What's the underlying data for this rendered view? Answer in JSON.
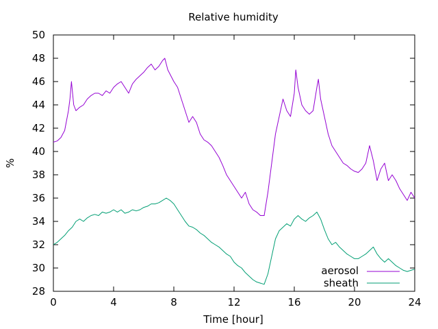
{
  "chart_data": {
    "type": "line",
    "title": "Relative humidity",
    "xlabel": "Time [hour]",
    "ylabel": "%",
    "xlim": [
      0,
      24
    ],
    "ylim": [
      28,
      50
    ],
    "xticks": [
      0,
      4,
      8,
      12,
      16,
      20,
      24
    ],
    "xtick_labels": [
      "0",
      "4",
      "8",
      "12",
      "16",
      "20",
      "24"
    ],
    "yticks": [
      28,
      30,
      32,
      34,
      36,
      38,
      40,
      42,
      44,
      46,
      48,
      50
    ],
    "ytick_labels": [
      "28",
      "30",
      "32",
      "34",
      "36",
      "38",
      "40",
      "42",
      "44",
      "46",
      "48",
      "50"
    ],
    "grid": false,
    "legend_position": "bottom-right",
    "series": [
      {
        "name": "aerosol",
        "color": "#9400d3",
        "x": [
          0,
          0.25,
          0.5,
          0.75,
          1.0,
          1.1,
          1.2,
          1.35,
          1.5,
          1.75,
          2.0,
          2.25,
          2.5,
          2.75,
          3.0,
          3.25,
          3.5,
          3.75,
          4.0,
          4.25,
          4.5,
          4.75,
          5.0,
          5.25,
          5.5,
          5.75,
          6.0,
          6.25,
          6.5,
          6.75,
          7.0,
          7.25,
          7.4,
          7.6,
          7.8,
          8.0,
          8.25,
          8.5,
          8.75,
          9.0,
          9.25,
          9.5,
          9.75,
          10.0,
          10.25,
          10.5,
          10.75,
          11.0,
          11.25,
          11.5,
          11.75,
          12.0,
          12.25,
          12.5,
          12.75,
          13.0,
          13.25,
          13.5,
          13.75,
          14.0,
          14.25,
          14.5,
          14.75,
          15.0,
          15.25,
          15.5,
          15.75,
          16.0,
          16.1,
          16.25,
          16.5,
          16.75,
          17.0,
          17.25,
          17.5,
          17.6,
          17.75,
          18.0,
          18.25,
          18.5,
          18.75,
          19.0,
          19.25,
          19.5,
          19.75,
          20.0,
          20.25,
          20.5,
          20.75,
          21.0,
          21.25,
          21.5,
          21.75,
          22.0,
          22.25,
          22.5,
          22.75,
          23.0,
          23.25,
          23.5,
          23.75,
          24.0
        ],
        "y": [
          40.8,
          40.9,
          41.2,
          41.8,
          43.5,
          44.5,
          46.0,
          44.0,
          43.5,
          43.8,
          44.0,
          44.5,
          44.8,
          45.0,
          45.0,
          44.8,
          45.2,
          45.0,
          45.5,
          45.8,
          46.0,
          45.5,
          45.0,
          45.8,
          46.2,
          46.5,
          46.8,
          47.2,
          47.5,
          47.0,
          47.3,
          47.8,
          48.0,
          47.0,
          46.5,
          46.0,
          45.5,
          44.5,
          43.5,
          42.5,
          43.0,
          42.5,
          41.5,
          41.0,
          40.8,
          40.5,
          40.0,
          39.5,
          38.8,
          38.0,
          37.5,
          37.0,
          36.5,
          36.0,
          36.5,
          35.5,
          35.0,
          34.8,
          34.5,
          34.5,
          36.5,
          39.0,
          41.5,
          43.0,
          44.5,
          43.5,
          43.0,
          45.0,
          47.0,
          45.5,
          44.0,
          43.5,
          43.2,
          43.5,
          45.5,
          46.2,
          44.5,
          43.0,
          41.5,
          40.5,
          40.0,
          39.5,
          39.0,
          38.8,
          38.5,
          38.3,
          38.2,
          38.5,
          39.0,
          40.5,
          39.2,
          37.5,
          38.5,
          39.0,
          37.5,
          38.0,
          37.5,
          36.8,
          36.3,
          35.8,
          36.5,
          36.0
        ]
      },
      {
        "name": "sheath",
        "color": "#009e73",
        "x": [
          0,
          0.25,
          0.5,
          0.75,
          1.0,
          1.25,
          1.5,
          1.75,
          2.0,
          2.25,
          2.5,
          2.75,
          3.0,
          3.25,
          3.5,
          3.75,
          4.0,
          4.25,
          4.5,
          4.75,
          5.0,
          5.25,
          5.5,
          5.75,
          6.0,
          6.25,
          6.5,
          6.75,
          7.0,
          7.25,
          7.5,
          7.75,
          8.0,
          8.25,
          8.5,
          8.75,
          9.0,
          9.25,
          9.5,
          9.75,
          10.0,
          10.25,
          10.5,
          10.75,
          11.0,
          11.25,
          11.5,
          11.75,
          12.0,
          12.25,
          12.5,
          12.75,
          13.0,
          13.25,
          13.5,
          13.75,
          14.0,
          14.25,
          14.5,
          14.75,
          15.0,
          15.25,
          15.5,
          15.75,
          16.0,
          16.25,
          16.5,
          16.75,
          17.0,
          17.25,
          17.5,
          17.75,
          18.0,
          18.25,
          18.5,
          18.75,
          19.0,
          19.25,
          19.5,
          19.75,
          20.0,
          20.25,
          20.5,
          20.75,
          21.0,
          21.25,
          21.5,
          21.75,
          22.0,
          22.25,
          22.5,
          22.75,
          23.0,
          23.25,
          23.5,
          23.75,
          24.0
        ],
        "y": [
          32.0,
          32.2,
          32.5,
          32.8,
          33.2,
          33.5,
          34.0,
          34.2,
          34.0,
          34.3,
          34.5,
          34.6,
          34.5,
          34.8,
          34.7,
          34.8,
          35.0,
          34.8,
          35.0,
          34.7,
          34.8,
          35.0,
          34.9,
          35.0,
          35.2,
          35.3,
          35.5,
          35.5,
          35.6,
          35.8,
          36.0,
          35.8,
          35.5,
          35.0,
          34.5,
          34.0,
          33.6,
          33.5,
          33.3,
          33.0,
          32.8,
          32.5,
          32.2,
          32.0,
          31.8,
          31.5,
          31.2,
          31.0,
          30.5,
          30.2,
          30.0,
          29.6,
          29.3,
          29.0,
          28.8,
          28.7,
          28.6,
          29.5,
          31.0,
          32.5,
          33.2,
          33.5,
          33.8,
          33.6,
          34.2,
          34.5,
          34.2,
          34.0,
          34.3,
          34.5,
          34.8,
          34.2,
          33.3,
          32.5,
          32.0,
          32.2,
          31.8,
          31.5,
          31.2,
          31.0,
          30.8,
          30.8,
          31.0,
          31.2,
          31.5,
          31.8,
          31.2,
          30.8,
          30.5,
          30.8,
          30.5,
          30.2,
          30.0,
          29.8,
          29.7,
          29.8,
          29.9
        ]
      }
    ]
  }
}
